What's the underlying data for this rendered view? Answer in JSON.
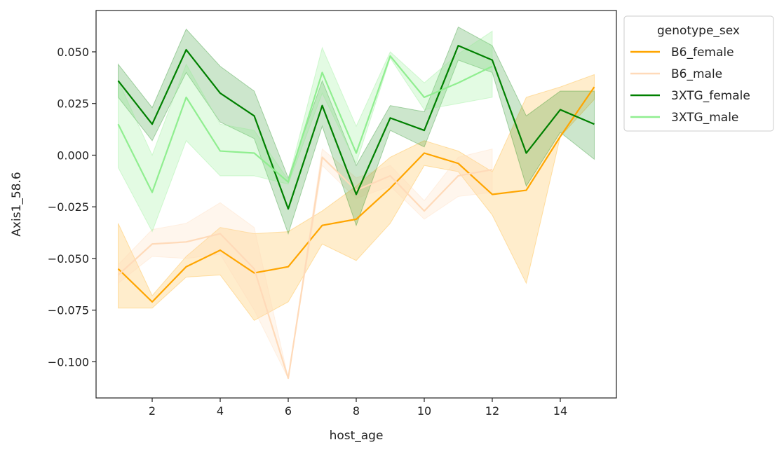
{
  "chart_data": {
    "type": "line",
    "title": "",
    "xlabel": "host_age",
    "ylabel": "Axis1_58.6",
    "xlim": [
      0.35,
      15.65
    ],
    "ylim": [
      -0.1175,
      0.07
    ],
    "xticks": [
      2,
      4,
      6,
      8,
      10,
      12,
      14
    ],
    "xtick_labels": [
      "2",
      "4",
      "6",
      "8",
      "10",
      "12",
      "14"
    ],
    "yticks": [
      -0.1,
      -0.075,
      -0.05,
      -0.025,
      0.0,
      0.025,
      0.05
    ],
    "ytick_labels": [
      "−0.100",
      "−0.075",
      "−0.050",
      "−0.025",
      "0.000",
      "0.025",
      "0.050"
    ],
    "grid": false,
    "legend": {
      "title": "genotype_sex",
      "placement": "outside-top-right"
    },
    "series": [
      {
        "name": "B6_female",
        "color": "#ffa500",
        "band_color": "#ffa500",
        "band_opacity": 0.2,
        "line_opacity": 1.0,
        "x": [
          1,
          2,
          3,
          4,
          5,
          6,
          7,
          8,
          9,
          10,
          11,
          12,
          13,
          14,
          15
        ],
        "values": [
          -0.055,
          -0.071,
          -0.054,
          -0.046,
          -0.057,
          -0.054,
          -0.034,
          -0.031,
          -0.016,
          0.001,
          -0.004,
          -0.019,
          -0.017,
          0.009,
          0.033
        ],
        "lower": [
          -0.074,
          -0.074,
          -0.059,
          -0.058,
          -0.08,
          -0.071,
          -0.043,
          -0.051,
          -0.033,
          -0.005,
          -0.008,
          -0.029,
          -0.062,
          0.009,
          0.027
        ],
        "upper": [
          -0.033,
          -0.068,
          -0.049,
          -0.035,
          -0.038,
          -0.037,
          -0.027,
          -0.015,
          -0.001,
          0.007,
          0.002,
          -0.008,
          0.028,
          0.033,
          0.039
        ]
      },
      {
        "name": "B6_male",
        "color": "#ffdab9",
        "band_color": "#ffdab9",
        "band_opacity": 0.25,
        "line_opacity": 1.0,
        "x": [
          1,
          2,
          3,
          4,
          5,
          6,
          7,
          8,
          9,
          10,
          11,
          12
        ],
        "values": [
          -0.058,
          -0.043,
          -0.042,
          -0.038,
          -0.055,
          -0.108,
          -0.001,
          -0.017,
          -0.01,
          -0.027,
          -0.01,
          -0.007
        ],
        "lower": [
          -0.062,
          -0.049,
          -0.05,
          -0.048,
          -0.075,
          -0.108,
          -0.005,
          -0.021,
          -0.015,
          -0.031,
          -0.02,
          -0.018
        ],
        "upper": [
          -0.053,
          -0.036,
          -0.033,
          -0.023,
          -0.035,
          -0.108,
          0.003,
          -0.011,
          -0.005,
          -0.022,
          -0.001,
          0.003
        ]
      },
      {
        "name": "3XTG_female",
        "color": "#008000",
        "band_color": "#008000",
        "band_opacity": 0.2,
        "line_opacity": 1.0,
        "x": [
          1,
          2,
          3,
          4,
          5,
          6,
          7,
          8,
          9,
          10,
          11,
          12,
          13,
          14,
          15
        ],
        "values": [
          0.036,
          0.015,
          0.051,
          0.03,
          0.019,
          -0.026,
          0.024,
          -0.019,
          0.018,
          0.012,
          0.053,
          0.046,
          0.001,
          0.022,
          0.015
        ],
        "lower": [
          0.028,
          0.007,
          0.04,
          0.016,
          0.008,
          -0.038,
          0.014,
          -0.034,
          0.012,
          0.004,
          0.046,
          0.04,
          -0.015,
          0.011,
          -0.002
        ],
        "upper": [
          0.044,
          0.023,
          0.061,
          0.043,
          0.031,
          -0.011,
          0.036,
          -0.005,
          0.024,
          0.021,
          0.062,
          0.053,
          0.019,
          0.031,
          0.031
        ]
      },
      {
        "name": "3XTG_male",
        "color": "#90ee90",
        "band_color": "#90ee90",
        "band_opacity": 0.25,
        "line_opacity": 1.0,
        "x": [
          1,
          2,
          3,
          4,
          5,
          6,
          7,
          8,
          9,
          10,
          11,
          12
        ],
        "values": [
          0.015,
          -0.018,
          0.028,
          0.002,
          0.001,
          -0.013,
          0.04,
          0.001,
          0.048,
          0.028,
          0.035,
          0.043
        ],
        "lower": [
          -0.006,
          -0.037,
          0.007,
          -0.01,
          -0.01,
          -0.014,
          0.03,
          -0.004,
          0.047,
          0.022,
          0.025,
          0.028
        ],
        "upper": [
          0.036,
          0.0,
          0.044,
          0.015,
          0.012,
          -0.012,
          0.052,
          0.014,
          0.05,
          0.035,
          0.049,
          0.06
        ]
      }
    ]
  }
}
